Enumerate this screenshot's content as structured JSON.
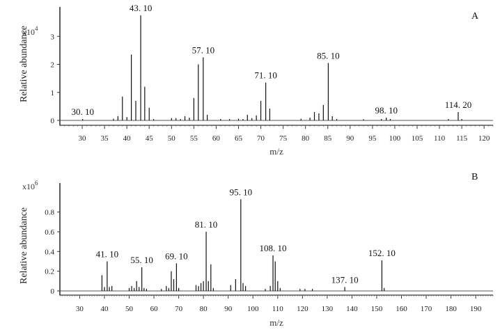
{
  "chart_data": [
    {
      "type": "bar",
      "panel": "A",
      "xlabel": "m/z",
      "ylabel": "Relative abundance",
      "y_multiplier": "x10",
      "y_multiplier_exp": "4",
      "xlim": [
        25,
        122
      ],
      "ylim": [
        0,
        4
      ],
      "xticks": [
        "30",
        "35",
        "40",
        "45",
        "50",
        "55",
        "60",
        "65",
        "70",
        "75",
        "80",
        "85",
        "90",
        "95",
        "100",
        "105",
        "110",
        "115",
        "120"
      ],
      "yticks": [
        "0",
        "1",
        "2",
        "3"
      ],
      "peaks": [
        {
          "x": 30.1,
          "y": 0.05,
          "label": "30. 10"
        },
        {
          "x": 37,
          "y": 0.06
        },
        {
          "x": 38,
          "y": 0.15
        },
        {
          "x": 39,
          "y": 0.85
        },
        {
          "x": 40,
          "y": 0.12
        },
        {
          "x": 41,
          "y": 2.35
        },
        {
          "x": 42,
          "y": 0.7
        },
        {
          "x": 43.1,
          "y": 3.75,
          "label": "43. 10"
        },
        {
          "x": 44,
          "y": 1.2
        },
        {
          "x": 45,
          "y": 0.45
        },
        {
          "x": 46,
          "y": 0.05
        },
        {
          "x": 50,
          "y": 0.08
        },
        {
          "x": 51,
          "y": 0.08
        },
        {
          "x": 52,
          "y": 0.05
        },
        {
          "x": 53,
          "y": 0.15
        },
        {
          "x": 54,
          "y": 0.1
        },
        {
          "x": 55,
          "y": 0.8
        },
        {
          "x": 56,
          "y": 2.0
        },
        {
          "x": 57.1,
          "y": 2.25,
          "label": "57. 10"
        },
        {
          "x": 58,
          "y": 0.2
        },
        {
          "x": 61,
          "y": 0.05
        },
        {
          "x": 63,
          "y": 0.05
        },
        {
          "x": 65,
          "y": 0.06
        },
        {
          "x": 66,
          "y": 0.05
        },
        {
          "x": 67,
          "y": 0.2
        },
        {
          "x": 68,
          "y": 0.08
        },
        {
          "x": 69,
          "y": 0.18
        },
        {
          "x": 70,
          "y": 0.7
        },
        {
          "x": 71.1,
          "y": 1.35,
          "label": "71. 10"
        },
        {
          "x": 72,
          "y": 0.42
        },
        {
          "x": 79,
          "y": 0.06
        },
        {
          "x": 81,
          "y": 0.1
        },
        {
          "x": 82,
          "y": 0.3
        },
        {
          "x": 83,
          "y": 0.25
        },
        {
          "x": 84,
          "y": 0.55
        },
        {
          "x": 85.1,
          "y": 2.05,
          "label": "85. 10"
        },
        {
          "x": 86,
          "y": 0.15
        },
        {
          "x": 87,
          "y": 0.05
        },
        {
          "x": 93,
          "y": 0.04
        },
        {
          "x": 97,
          "y": 0.05
        },
        {
          "x": 98.1,
          "y": 0.1,
          "label": "98. 10"
        },
        {
          "x": 99,
          "y": 0.05
        },
        {
          "x": 112,
          "y": 0.05
        },
        {
          "x": 114.2,
          "y": 0.3,
          "label": "114. 20"
        },
        {
          "x": 115,
          "y": 0.05
        }
      ]
    },
    {
      "type": "bar",
      "panel": "B",
      "xlabel": "m/z",
      "ylabel": "Relative abundance",
      "y_multiplier": "x10",
      "y_multiplier_exp": "6",
      "xlim": [
        22,
        197
      ],
      "ylim": [
        0,
        1.08
      ],
      "xticks": [
        "30",
        "40",
        "50",
        "60",
        "70",
        "80",
        "90",
        "100",
        "110",
        "120",
        "130",
        "140",
        "150",
        "160",
        "170",
        "180",
        "190"
      ],
      "yticks": [
        "0",
        "0.2",
        "0.4",
        "0.6",
        "0.8"
      ],
      "peaks": [
        {
          "x": 39,
          "y": 0.16
        },
        {
          "x": 40,
          "y": 0.04
        },
        {
          "x": 41.1,
          "y": 0.3,
          "label": "41. 10"
        },
        {
          "x": 42,
          "y": 0.04
        },
        {
          "x": 43,
          "y": 0.05
        },
        {
          "x": 50,
          "y": 0.03
        },
        {
          "x": 51,
          "y": 0.05
        },
        {
          "x": 52,
          "y": 0.03
        },
        {
          "x": 53,
          "y": 0.1
        },
        {
          "x": 54,
          "y": 0.04
        },
        {
          "x": 55.1,
          "y": 0.24,
          "label": "55. 10"
        },
        {
          "x": 56,
          "y": 0.03
        },
        {
          "x": 57,
          "y": 0.02
        },
        {
          "x": 63,
          "y": 0.02
        },
        {
          "x": 65,
          "y": 0.05
        },
        {
          "x": 66,
          "y": 0.03
        },
        {
          "x": 67,
          "y": 0.2
        },
        {
          "x": 68,
          "y": 0.12
        },
        {
          "x": 69.1,
          "y": 0.28,
          "label": "69. 10"
        },
        {
          "x": 70,
          "y": 0.03
        },
        {
          "x": 77,
          "y": 0.06
        },
        {
          "x": 78,
          "y": 0.05
        },
        {
          "x": 79,
          "y": 0.08
        },
        {
          "x": 80,
          "y": 0.1
        },
        {
          "x": 81.1,
          "y": 0.6,
          "label": "81. 10"
        },
        {
          "x": 82,
          "y": 0.1
        },
        {
          "x": 83,
          "y": 0.27
        },
        {
          "x": 84,
          "y": 0.03
        },
        {
          "x": 91,
          "y": 0.06
        },
        {
          "x": 93,
          "y": 0.12
        },
        {
          "x": 95.1,
          "y": 0.93,
          "label": "95. 10"
        },
        {
          "x": 96,
          "y": 0.08
        },
        {
          "x": 97,
          "y": 0.05
        },
        {
          "x": 105,
          "y": 0.02
        },
        {
          "x": 107,
          "y": 0.05
        },
        {
          "x": 108.1,
          "y": 0.36,
          "label": "108. 10"
        },
        {
          "x": 109,
          "y": 0.3
        },
        {
          "x": 110,
          "y": 0.1
        },
        {
          "x": 111,
          "y": 0.03
        },
        {
          "x": 119,
          "y": 0.02
        },
        {
          "x": 121,
          "y": 0.02
        },
        {
          "x": 124,
          "y": 0.02
        },
        {
          "x": 137.1,
          "y": 0.04,
          "label": "137. 10"
        },
        {
          "x": 152.1,
          "y": 0.31,
          "label": "152. 10"
        },
        {
          "x": 153,
          "y": 0.03
        }
      ]
    }
  ]
}
